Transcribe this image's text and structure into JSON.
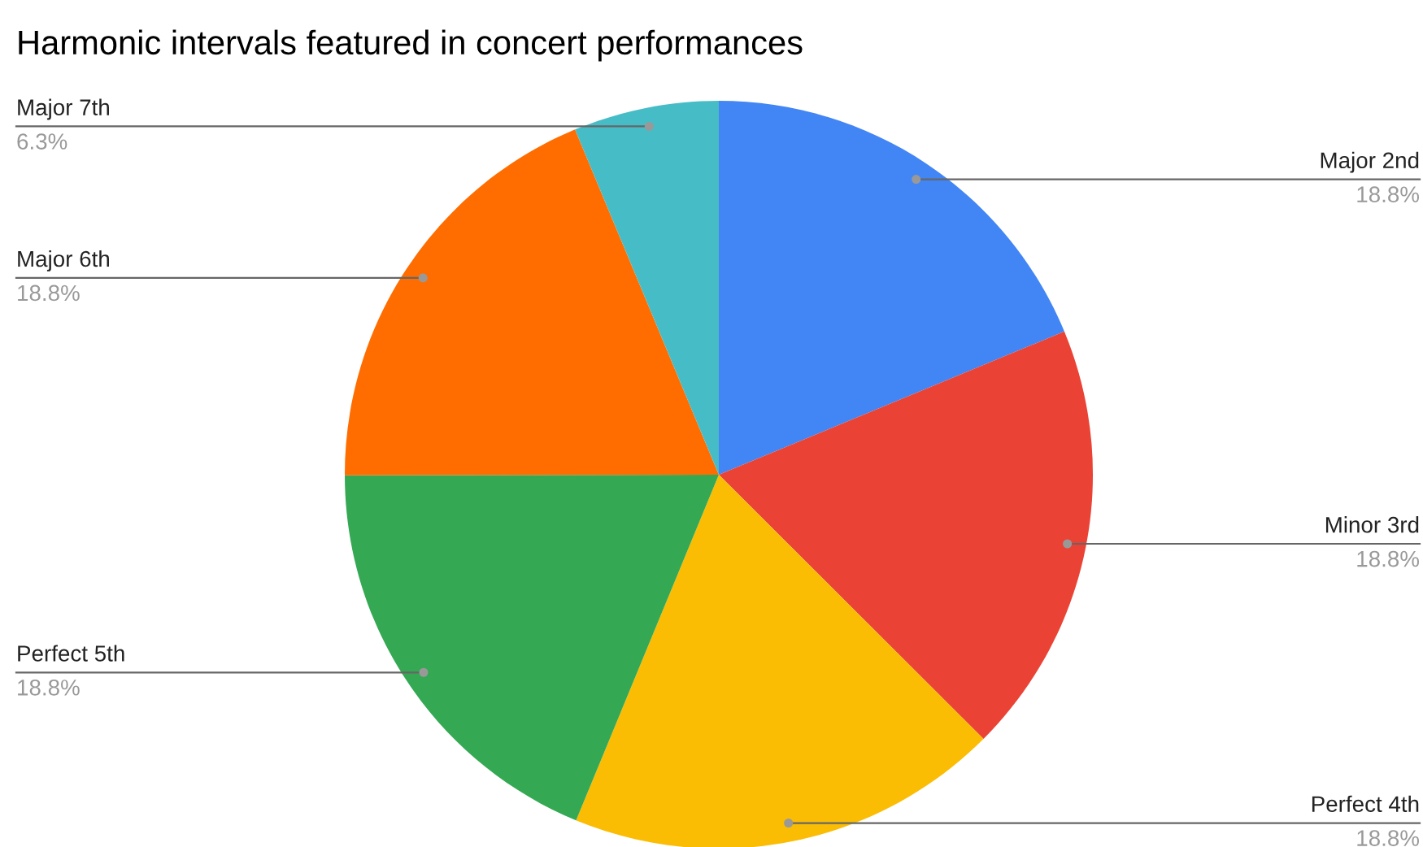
{
  "chart_data": {
    "type": "pie",
    "title": "Harmonic intervals featured in concert performances",
    "categories": [
      "Major 2nd",
      "Minor 3rd",
      "Perfect 4th",
      "Perfect 5th",
      "Major 6th",
      "Major 7th"
    ],
    "values": [
      18.8,
      18.8,
      18.8,
      18.8,
      18.8,
      6.3
    ],
    "colors": [
      "#4285f4",
      "#ea4335",
      "#fbbc04",
      "#34a853",
      "#ff6d01",
      "#46bdc6"
    ],
    "value_labels": [
      "18.8%",
      "18.8%",
      "18.8%",
      "18.8%",
      "18.8%",
      "6.3%"
    ]
  }
}
